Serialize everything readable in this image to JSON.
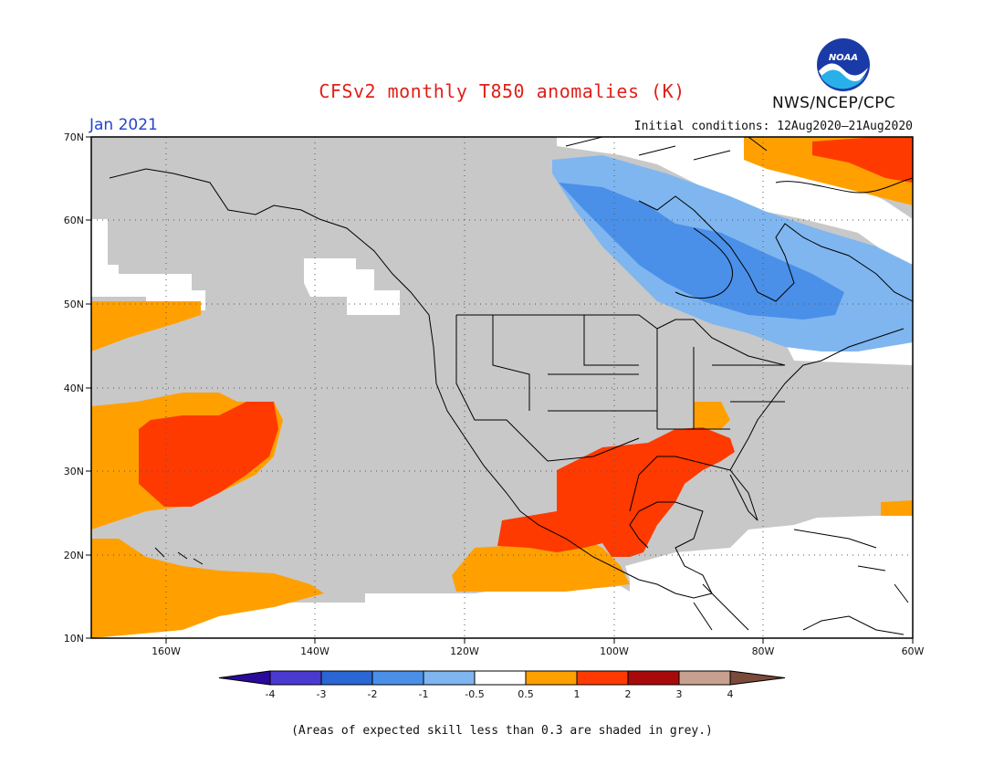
{
  "title": "CFSv2 monthly T850 anomalies (K)",
  "month": "Jan 2021",
  "agency": "NWS/NCEP/CPC",
  "logo": {
    "text": "NOAA"
  },
  "initial_conditions": "Initial conditions: 12Aug2020–21Aug2020",
  "footnote": "(Areas of expected skill less than 0.3 are shaded in grey.)",
  "map": {
    "lon_range": [
      -170,
      -60
    ],
    "lat_range": [
      10,
      70
    ],
    "lat_labels": [
      "70N",
      "60N",
      "50N",
      "40N",
      "30N",
      "20N",
      "10N"
    ],
    "lon_labels": [
      "160W",
      "140W",
      "120W",
      "100W",
      "80W",
      "60W"
    ],
    "colors": {
      "skill_grey": "#c8c8c8",
      "neutral": "#ffffff",
      "cold_1": "#7fb6f0",
      "cold_2": "#4a90e8",
      "warm_1": "#ffa000",
      "warm_2": "#ff3a00",
      "coast": "#000000"
    }
  },
  "colorbar": {
    "labels": [
      "-4",
      "-3",
      "-2",
      "-1",
      "-0.5",
      "0.5",
      "1",
      "2",
      "3",
      "4"
    ],
    "colors": [
      "#2a0a9a",
      "#4a3ad0",
      "#2a66d4",
      "#4a90e8",
      "#7fb6f0",
      "#ffffff",
      "#ffa000",
      "#ff3a00",
      "#a80a0a",
      "#c8a090",
      "#7a4a3a"
    ]
  }
}
